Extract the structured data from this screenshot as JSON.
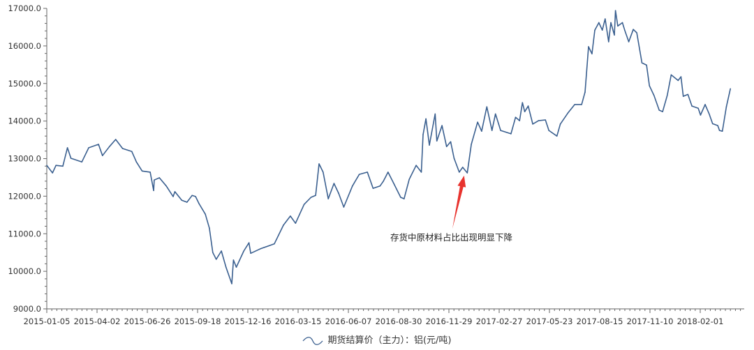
{
  "chart_data": {
    "type": "line",
    "title": "",
    "xlabel": "",
    "ylabel": "",
    "ylim": [
      9000,
      17000
    ],
    "y_ticks": [
      "9000.0",
      "10000.0",
      "11000.0",
      "12000.0",
      "13000.0",
      "14000.0",
      "15000.0",
      "16000.0",
      "17000.0"
    ],
    "x_ticks": [
      "2015-01-05",
      "2015-04-02",
      "2015-06-26",
      "2015-09-18",
      "2015-12-16",
      "2016-03-15",
      "2016-06-07",
      "2016-08-30",
      "2016-11-29",
      "2017-02-27",
      "2017-05-23",
      "2017-08-15",
      "2017-11-10",
      "2018-02-01"
    ],
    "grid": false,
    "legend_position": "bottom",
    "line_color": "#3a5f8f",
    "series": [
      {
        "name": "期货结算价（主力）：铝(元/吨)",
        "points": [
          [
            "2015-01-05",
            12820
          ],
          [
            "2015-01-15",
            12620
          ],
          [
            "2015-01-21",
            12820
          ],
          [
            "2015-02-02",
            12800
          ],
          [
            "2015-02-10",
            13290
          ],
          [
            "2015-02-16",
            13010
          ],
          [
            "2015-03-07",
            12910
          ],
          [
            "2015-03-19",
            13290
          ],
          [
            "2015-04-05",
            13380
          ],
          [
            "2015-04-12",
            13080
          ],
          [
            "2015-04-24",
            13320
          ],
          [
            "2015-05-05",
            13510
          ],
          [
            "2015-05-17",
            13270
          ],
          [
            "2015-06-02",
            13190
          ],
          [
            "2015-06-10",
            12910
          ],
          [
            "2015-06-20",
            12670
          ],
          [
            "2015-07-04",
            12640
          ],
          [
            "2015-07-10",
            12150
          ],
          [
            "2015-07-11",
            12430
          ],
          [
            "2015-07-20",
            12490
          ],
          [
            "2015-08-01",
            12270
          ],
          [
            "2015-08-13",
            11990
          ],
          [
            "2015-08-16",
            12120
          ],
          [
            "2015-08-28",
            11890
          ],
          [
            "2015-09-06",
            11840
          ],
          [
            "2015-09-15",
            12020
          ],
          [
            "2015-09-21",
            11990
          ],
          [
            "2015-09-27",
            11800
          ],
          [
            "2015-10-08",
            11520
          ],
          [
            "2015-10-15",
            11150
          ],
          [
            "2015-10-21",
            10500
          ],
          [
            "2015-10-27",
            10320
          ],
          [
            "2015-11-05",
            10540
          ],
          [
            "2015-11-13",
            10110
          ],
          [
            "2015-11-23",
            9670
          ],
          [
            "2015-11-26",
            10300
          ],
          [
            "2015-12-01",
            10110
          ],
          [
            "2015-12-14",
            10540
          ],
          [
            "2015-12-23",
            10760
          ],
          [
            "2015-12-26",
            10480
          ],
          [
            "2016-01-12",
            10600
          ],
          [
            "2016-02-05",
            10730
          ],
          [
            "2016-02-21",
            11230
          ],
          [
            "2016-03-04",
            11470
          ],
          [
            "2016-03-13",
            11280
          ],
          [
            "2016-03-28",
            11780
          ],
          [
            "2016-04-09",
            11970
          ],
          [
            "2016-04-17",
            12020
          ],
          [
            "2016-04-23",
            12860
          ],
          [
            "2016-04-30",
            12640
          ],
          [
            "2016-05-09",
            11930
          ],
          [
            "2016-05-19",
            12340
          ],
          [
            "2016-05-27",
            12080
          ],
          [
            "2016-06-05",
            11710
          ],
          [
            "2016-06-20",
            12270
          ],
          [
            "2016-07-02",
            12580
          ],
          [
            "2016-07-16",
            12640
          ],
          [
            "2016-07-26",
            12210
          ],
          [
            "2016-08-07",
            12270
          ],
          [
            "2016-08-13",
            12400
          ],
          [
            "2016-08-21",
            12640
          ],
          [
            "2016-08-31",
            12340
          ],
          [
            "2016-09-12",
            11970
          ],
          [
            "2016-09-18",
            11930
          ],
          [
            "2016-09-27",
            12450
          ],
          [
            "2016-10-09",
            12820
          ],
          [
            "2016-10-18",
            12640
          ],
          [
            "2016-10-21",
            13640
          ],
          [
            "2016-10-26",
            14060
          ],
          [
            "2016-11-01",
            13360
          ],
          [
            "2016-11-11",
            14190
          ],
          [
            "2016-11-14",
            13470
          ],
          [
            "2016-11-23",
            13880
          ],
          [
            "2016-12-01",
            13320
          ],
          [
            "2016-12-08",
            13450
          ],
          [
            "2016-12-14",
            13010
          ],
          [
            "2016-12-23",
            12640
          ],
          [
            "2016-12-29",
            12770
          ],
          [
            "2017-01-06",
            12620
          ],
          [
            "2017-01-13",
            13380
          ],
          [
            "2017-01-24",
            13970
          ],
          [
            "2017-01-31",
            13730
          ],
          [
            "2017-02-09",
            14380
          ],
          [
            "2017-02-18",
            13750
          ],
          [
            "2017-02-24",
            14190
          ],
          [
            "2017-03-05",
            13750
          ],
          [
            "2017-03-23",
            13660
          ],
          [
            "2017-03-31",
            14100
          ],
          [
            "2017-04-07",
            14010
          ],
          [
            "2017-04-12",
            14490
          ],
          [
            "2017-04-16",
            14250
          ],
          [
            "2017-04-22",
            14400
          ],
          [
            "2017-04-30",
            13920
          ],
          [
            "2017-05-10",
            14010
          ],
          [
            "2017-05-22",
            14030
          ],
          [
            "2017-05-28",
            13750
          ],
          [
            "2017-06-11",
            13600
          ],
          [
            "2017-06-17",
            13920
          ],
          [
            "2017-06-30",
            14210
          ],
          [
            "2017-07-12",
            14440
          ],
          [
            "2017-07-24",
            14440
          ],
          [
            "2017-07-30",
            14770
          ],
          [
            "2017-08-05",
            15980
          ],
          [
            "2017-08-11",
            15790
          ],
          [
            "2017-08-16",
            16420
          ],
          [
            "2017-08-23",
            16620
          ],
          [
            "2017-08-29",
            16420
          ],
          [
            "2017-09-03",
            16720
          ],
          [
            "2017-09-09",
            16110
          ],
          [
            "2017-09-13",
            16620
          ],
          [
            "2017-09-19",
            16290
          ],
          [
            "2017-09-21",
            16940
          ],
          [
            "2017-09-25",
            16530
          ],
          [
            "2017-10-03",
            16620
          ],
          [
            "2017-10-07",
            16420
          ],
          [
            "2017-10-14",
            16110
          ],
          [
            "2017-10-22",
            16440
          ],
          [
            "2017-10-28",
            16350
          ],
          [
            "2017-11-06",
            15550
          ],
          [
            "2017-11-14",
            15490
          ],
          [
            "2017-11-19",
            14940
          ],
          [
            "2017-11-27",
            14680
          ],
          [
            "2017-12-06",
            14290
          ],
          [
            "2017-12-12",
            14250
          ],
          [
            "2017-12-20",
            14680
          ],
          [
            "2017-12-27",
            15230
          ],
          [
            "2018-01-08",
            15080
          ],
          [
            "2018-01-13",
            15180
          ],
          [
            "2018-01-17",
            14660
          ],
          [
            "2018-01-25",
            14710
          ],
          [
            "2018-02-01",
            14400
          ],
          [
            "2018-02-12",
            14340
          ],
          [
            "2018-02-16",
            14160
          ],
          [
            "2018-02-24",
            14440
          ],
          [
            "2018-03-03",
            14190
          ],
          [
            "2018-03-09",
            13930
          ],
          [
            "2018-03-18",
            13880
          ],
          [
            "2018-03-21",
            13750
          ],
          [
            "2018-03-26",
            13730
          ],
          [
            "2018-04-02",
            14380
          ],
          [
            "2018-04-09",
            14860
          ]
        ]
      }
    ],
    "annotation": {
      "text": "存货中原材料占比出现明显下降",
      "target": [
        "2016-12-29",
        12640
      ],
      "arrow_color": "#e8332e"
    }
  }
}
